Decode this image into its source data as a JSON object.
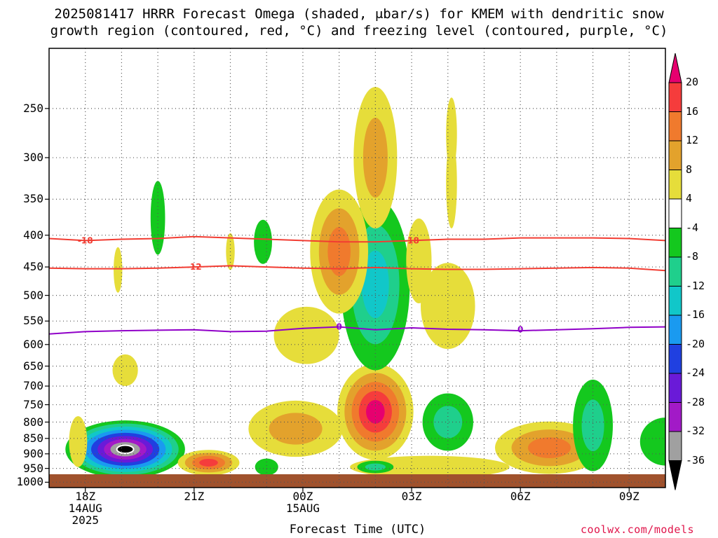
{
  "chart_data": {
    "type": "heatmap",
    "title_line1": "2025081417 HRRR Forecast Omega (shaded, μbar/s) for KMEM with dendritic snow",
    "title_line2": "growth region (contoured, red, °C) and freezing level (contoured, purple, °C)",
    "xlabel": "Forecast Time (UTC)",
    "ylabel": "",
    "y_scale": "pressure (hPa, inverted)",
    "y_ticks": [
      "250",
      "300",
      "350",
      "400",
      "450",
      "500",
      "550",
      "600",
      "650",
      "700",
      "750",
      "800",
      "850",
      "900",
      "950",
      "1000"
    ],
    "x_ticks": [
      {
        "label": "18Z",
        "sub1": "14AUG",
        "sub2": "2025",
        "hour": 18
      },
      {
        "label": "21Z",
        "sub1": "",
        "sub2": "",
        "hour": 21
      },
      {
        "label": "00Z",
        "sub1": "15AUG",
        "sub2": "",
        "hour": 24
      },
      {
        "label": "03Z",
        "sub1": "",
        "sub2": "",
        "hour": 27
      },
      {
        "label": "06Z",
        "sub1": "",
        "sub2": "",
        "hour": 30
      },
      {
        "label": "09Z",
        "sub1": "",
        "sub2": "",
        "hour": 33
      }
    ],
    "x_range_hours": [
      17,
      34
    ],
    "y_range_hpa": [
      200,
      1020
    ],
    "grid": true,
    "colorbar": {
      "labels": [
        "20",
        "16",
        "12",
        "8",
        "4",
        "-4",
        "-8",
        "-12",
        "-16",
        "-20",
        "-24",
        "-28",
        "-32",
        "-36"
      ],
      "colors": [
        "#e6006f",
        "#f53c3c",
        "#f07a2d",
        "#e3a22c",
        "#e6dd3a",
        "#ffffff",
        "#14c81e",
        "#1fcf8c",
        "#11c7c9",
        "#1a9af0",
        "#2040e0",
        "#6a1ad8",
        "#a21ac7",
        "#a0a0a0",
        "#000000"
      ]
    },
    "contours": [
      {
        "name": "-18",
        "color": "#f23c32",
        "points": [
          [
            17,
            405
          ],
          [
            18,
            408
          ],
          [
            19,
            406
          ],
          [
            20,
            405
          ],
          [
            21,
            402
          ],
          [
            22,
            404
          ],
          [
            23,
            406
          ],
          [
            24,
            408
          ],
          [
            25,
            410
          ],
          [
            26,
            410
          ],
          [
            27,
            408
          ],
          [
            28,
            406
          ],
          [
            29,
            406
          ],
          [
            30,
            404
          ],
          [
            31,
            404
          ],
          [
            32,
            404
          ],
          [
            33,
            405
          ],
          [
            34,
            408
          ]
        ],
        "label_positions": [
          [
            18,
            408
          ],
          [
            27,
            408
          ]
        ]
      },
      {
        "name": "-12",
        "color": "#f23c32",
        "points": [
          [
            17,
            452
          ],
          [
            18,
            453
          ],
          [
            19,
            453
          ],
          [
            20,
            452
          ],
          [
            21,
            450
          ],
          [
            22,
            448
          ],
          [
            23,
            450
          ],
          [
            24,
            452
          ],
          [
            25,
            453
          ],
          [
            26,
            451
          ],
          [
            27,
            453
          ],
          [
            28,
            454
          ],
          [
            29,
            454
          ],
          [
            30,
            453
          ],
          [
            31,
            452
          ],
          [
            32,
            451
          ],
          [
            33,
            452
          ],
          [
            34,
            456
          ]
        ],
        "label_positions": [
          [
            21,
            450
          ]
        ]
      },
      {
        "name": "0",
        "color": "#9000c8",
        "points": [
          [
            17,
            577
          ],
          [
            18,
            572
          ],
          [
            19,
            570
          ],
          [
            20,
            569
          ],
          [
            21,
            568
          ],
          [
            22,
            572
          ],
          [
            23,
            571
          ],
          [
            24,
            565
          ],
          [
            25,
            562
          ],
          [
            26,
            568
          ],
          [
            27,
            564
          ],
          [
            28,
            567
          ],
          [
            29,
            568
          ],
          [
            30,
            570
          ],
          [
            31,
            568
          ],
          [
            32,
            566
          ],
          [
            33,
            563
          ],
          [
            34,
            562
          ]
        ],
        "label_positions": [
          [
            25,
            562
          ],
          [
            30,
            568
          ]
        ]
      }
    ],
    "omega_regions": [
      {
        "center_hour": 19.1,
        "center_hpa": 885,
        "rx": 1.65,
        "ry": 100,
        "values": [
          -4,
          -8,
          -12,
          -16,
          -20,
          -24,
          -28,
          -32,
          -36
        ]
      },
      {
        "center_hour": 21.4,
        "center_hpa": 930,
        "rx": 0.85,
        "ry": 45,
        "values": [
          4,
          8,
          12,
          16
        ]
      },
      {
        "center_hour": 26.0,
        "center_hpa": 770,
        "rx": 1.05,
        "ry": 150,
        "values": [
          4,
          8,
          12,
          16,
          20
        ]
      },
      {
        "center_hour": 26.0,
        "center_hpa": 480,
        "rx": 0.95,
        "ry": 180,
        "values": [
          -4,
          -8,
          -12
        ]
      },
      {
        "center_hour": 26.0,
        "center_hpa": 300,
        "rx": 0.6,
        "ry": 90,
        "values": [
          4,
          8
        ]
      },
      {
        "center_hour": 25.0,
        "center_hpa": 425,
        "rx": 0.8,
        "ry": 110,
        "values": [
          4,
          8,
          12
        ]
      },
      {
        "center_hour": 24.1,
        "center_hpa": 580,
        "rx": 0.9,
        "ry": 65,
        "values": [
          4
        ]
      },
      {
        "center_hour": 23.8,
        "center_hpa": 820,
        "rx": 1.3,
        "ry": 90,
        "values": [
          4,
          8
        ]
      },
      {
        "center_hour": 28.0,
        "center_hpa": 520,
        "rx": 0.75,
        "ry": 90,
        "values": [
          4
        ]
      },
      {
        "center_hour": 28.0,
        "center_hpa": 800,
        "rx": 0.7,
        "ry": 90,
        "values": [
          -4,
          -8
        ]
      },
      {
        "center_hour": 27.5,
        "center_hpa": 945,
        "rx": 2.2,
        "ry": 40,
        "values": [
          4
        ]
      },
      {
        "center_hour": 30.8,
        "center_hpa": 880,
        "rx": 1.5,
        "ry": 90,
        "values": [
          4,
          8,
          12
        ]
      },
      {
        "center_hour": 32.0,
        "center_hpa": 810,
        "rx": 0.55,
        "ry": 150,
        "values": [
          -4,
          -8
        ]
      },
      {
        "center_hour": 34.0,
        "center_hpa": 860,
        "rx": 0.7,
        "ry": 80,
        "values": [
          -4
        ]
      },
      {
        "center_hour": 19.1,
        "center_hpa": 660,
        "rx": 0.35,
        "ry": 40,
        "values": [
          4
        ]
      },
      {
        "center_hour": 18.9,
        "center_hpa": 455,
        "rx": 0.12,
        "ry": 40,
        "values": [
          4
        ]
      },
      {
        "center_hour": 20.0,
        "center_hpa": 375,
        "rx": 0.2,
        "ry": 55,
        "values": [
          -4
        ]
      },
      {
        "center_hour": 22.9,
        "center_hpa": 410,
        "rx": 0.25,
        "ry": 35,
        "values": [
          -4
        ]
      },
      {
        "center_hour": 22.0,
        "center_hpa": 425,
        "rx": 0.12,
        "ry": 30,
        "values": [
          4
        ]
      },
      {
        "center_hour": 23.0,
        "center_hpa": 945,
        "rx": 0.32,
        "ry": 30,
        "values": [
          -4
        ]
      },
      {
        "center_hour": 26.0,
        "center_hpa": 945,
        "rx": 0.5,
        "ry": 22,
        "values": [
          -4,
          -8
        ]
      },
      {
        "center_hour": 27.2,
        "center_hpa": 440,
        "rx": 0.35,
        "ry": 75,
        "values": [
          4
        ]
      },
      {
        "center_hour": 28.1,
        "center_hpa": 275,
        "rx": 0.15,
        "ry": 40,
        "values": [
          4
        ]
      },
      {
        "center_hour": 28.1,
        "center_hpa": 330,
        "rx": 0.15,
        "ry": 60,
        "values": [
          4
        ]
      },
      {
        "center_hour": 17.8,
        "center_hpa": 860,
        "rx": 0.25,
        "ry": 85,
        "values": [
          4
        ]
      }
    ]
  },
  "credit": "coolwx.com/models"
}
